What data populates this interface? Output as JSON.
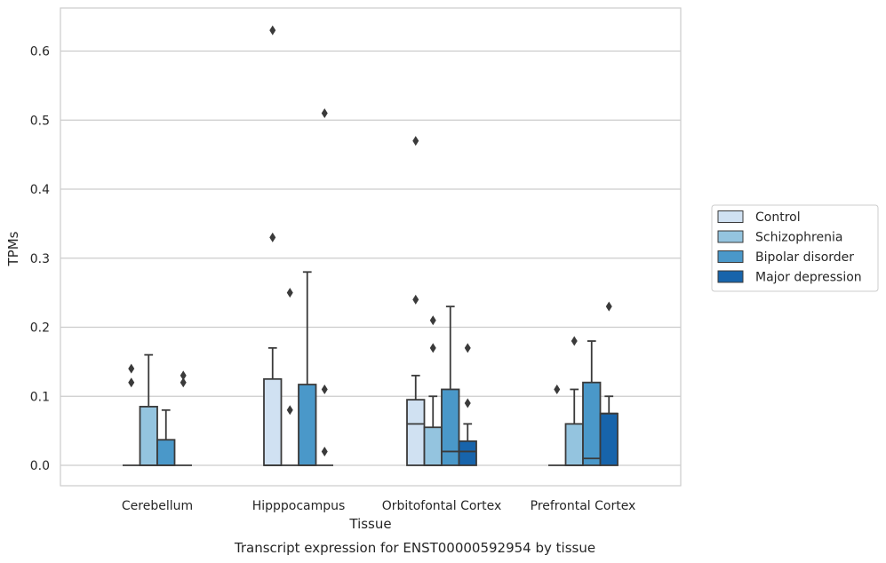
{
  "chart_data": {
    "type": "box",
    "title": "",
    "caption": "Transcript expression for ENST00000592954 by tissue",
    "xlabel": "Tissue",
    "ylabel": "TPMs",
    "ylim": [
      -0.03,
      0.66
    ],
    "yticks": [
      0.0,
      0.1,
      0.2,
      0.3,
      0.4,
      0.5,
      0.6
    ],
    "ytick_labels": [
      "0.0",
      "0.1",
      "0.2",
      "0.3",
      "0.4",
      "0.5",
      "0.6"
    ],
    "grid": "horizontal",
    "legend_position": "right",
    "categories": [
      "Cerebellum",
      "Hipppocampus",
      "Orbitofontal Cortex",
      "Prefrontal Cortex"
    ],
    "series": [
      {
        "name": "Control",
        "color": "#d0e1f2",
        "boxes": [
          {
            "q1": 0,
            "median": 0,
            "q3": 0,
            "whislo": 0,
            "whishi": 0,
            "fliers": [
              0.12,
              0.14
            ]
          },
          {
            "q1": 0,
            "median": 0,
            "q3": 0.125,
            "whislo": 0,
            "whishi": 0.17,
            "fliers": [
              0.33,
              0.63
            ]
          },
          {
            "q1": 0,
            "median": 0.06,
            "q3": 0.095,
            "whislo": 0,
            "whishi": 0.13,
            "fliers": [
              0.24,
              0.47
            ]
          },
          {
            "q1": 0,
            "median": 0,
            "q3": 0,
            "whislo": 0,
            "whishi": 0,
            "fliers": [
              0.11
            ]
          }
        ]
      },
      {
        "name": "Schizophrenia",
        "color": "#94c4df",
        "boxes": [
          {
            "q1": 0,
            "median": 0,
            "q3": 0.085,
            "whislo": 0,
            "whishi": 0.16,
            "fliers": []
          },
          {
            "q1": 0,
            "median": 0,
            "q3": 0,
            "whislo": 0,
            "whishi": 0,
            "fliers": [
              0.08,
              0.25
            ]
          },
          {
            "q1": 0,
            "median": 0,
            "q3": 0.055,
            "whislo": 0,
            "whishi": 0.1,
            "fliers": [
              0.17,
              0.21
            ]
          },
          {
            "q1": 0,
            "median": 0,
            "q3": 0.06,
            "whislo": 0,
            "whishi": 0.11,
            "fliers": [
              0.18
            ]
          }
        ]
      },
      {
        "name": "Bipolar disorder",
        "color": "#4a98c9",
        "boxes": [
          {
            "q1": 0,
            "median": 0,
            "q3": 0.037,
            "whislo": 0,
            "whishi": 0.08,
            "fliers": []
          },
          {
            "q1": 0,
            "median": 0,
            "q3": 0.117,
            "whislo": 0,
            "whishi": 0.28,
            "fliers": []
          },
          {
            "q1": 0,
            "median": 0.02,
            "q3": 0.11,
            "whislo": 0,
            "whishi": 0.23,
            "fliers": []
          },
          {
            "q1": 0,
            "median": 0.01,
            "q3": 0.12,
            "whislo": 0,
            "whishi": 0.18,
            "fliers": []
          }
        ]
      },
      {
        "name": "Major depression",
        "color": "#1764ab",
        "boxes": [
          {
            "q1": 0,
            "median": 0,
            "q3": 0,
            "whislo": 0,
            "whishi": 0,
            "fliers": [
              0.12,
              0.13
            ]
          },
          {
            "q1": 0,
            "median": 0,
            "q3": 0,
            "whislo": 0,
            "whishi": 0,
            "fliers": [
              0.02,
              0.11,
              0.51
            ]
          },
          {
            "q1": 0,
            "median": 0.02,
            "q3": 0.035,
            "whislo": 0,
            "whishi": 0.06,
            "fliers": [
              0.09,
              0.17
            ]
          },
          {
            "q1": 0,
            "median": 0.075,
            "q3": 0.075,
            "whislo": 0,
            "whishi": 0.1,
            "fliers": [
              0.23
            ]
          }
        ]
      }
    ]
  }
}
